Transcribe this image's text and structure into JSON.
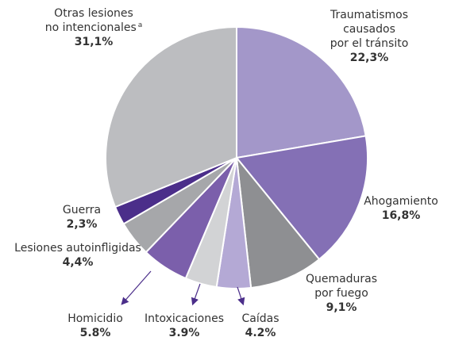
{
  "chart_data": {
    "type": "pie",
    "categories": [
      "Traumatismos causados\npor el tránsito",
      "Ahogamiento",
      "Quemaduras\npor fuego",
      "Caídas",
      "Intoxicaciones",
      "Homicidio",
      "Lesiones autoinfligidas",
      "Guerra",
      "Otras lesiones\nno intencionales"
    ],
    "values": [
      22.3,
      16.8,
      9.1,
      4.2,
      3.9,
      5.8,
      4.4,
      2.3,
      31.1
    ],
    "value_labels": [
      "22,3%",
      "16,8%",
      "9,1%",
      "4.2%",
      "3.9%",
      "5.8%",
      "4,4%",
      "2,3%",
      "31,1%"
    ],
    "colors": [
      "#a397c9",
      "#8470b5",
      "#8e8f92",
      "#b4a9d5",
      "#d2d3d5",
      "#7b5fab",
      "#a6a7aa",
      "#4b2e8a",
      "#bcbdc0"
    ],
    "annotations": [
      "a"
    ]
  }
}
